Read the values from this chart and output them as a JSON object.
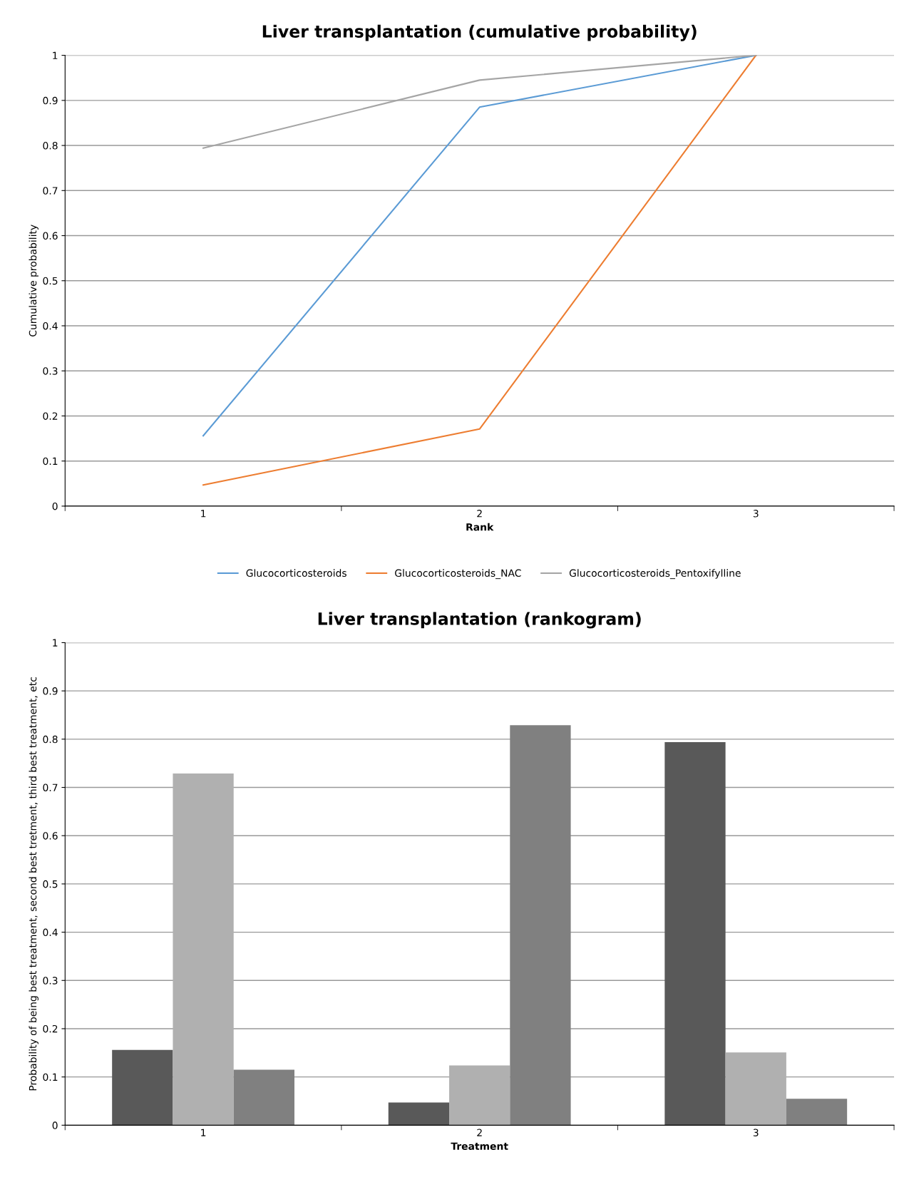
{
  "chart_data": [
    {
      "type": "line",
      "title": "Liver transplantation (cumulative probability)",
      "xlabel": "Rank",
      "ylabel": "Cumulative probability",
      "categories": [
        "1",
        "2",
        "3"
      ],
      "series": [
        {
          "name": "Glucocorticosteroids",
          "color": "#5b9bd5",
          "values": [
            0.156,
            0.885,
            1
          ]
        },
        {
          "name": "Glucocorticosteroids_NAC",
          "color": "#ed7d31",
          "values": [
            0.047,
            0.171,
            1
          ]
        },
        {
          "name": "Glucocorticosteroids_Pentoxifylline",
          "color": "#a5a5a5",
          "values": [
            0.794,
            0.945,
            1
          ]
        }
      ],
      "ylim": [
        0,
        1
      ],
      "yticks": [
        0,
        0.1,
        0.2,
        0.3,
        0.4,
        0.5,
        0.6,
        0.7,
        0.8,
        0.9,
        1
      ],
      "grid": "y",
      "legend": "bottom"
    },
    {
      "type": "bar",
      "title": "Liver transplantation (rankogram)",
      "xlabel": "Treatment",
      "ylabel": "Probability of being best treatment, second best tretment, third best treatment, etc",
      "categories": [
        "1",
        "2",
        "3"
      ],
      "series": [
        {
          "color": "#595959",
          "values": [
            0.156,
            0.047,
            0.794
          ]
        },
        {
          "color": "#b0b0b0",
          "values": [
            0.729,
            0.124,
            0.151
          ]
        },
        {
          "color": "#808080",
          "values": [
            0.115,
            0.829,
            0.055
          ]
        }
      ],
      "ylim": [
        0,
        1
      ],
      "yticks": [
        0,
        0.1,
        0.2,
        0.3,
        0.4,
        0.5,
        0.6,
        0.7,
        0.8,
        0.9,
        1
      ],
      "grid": "y"
    }
  ]
}
